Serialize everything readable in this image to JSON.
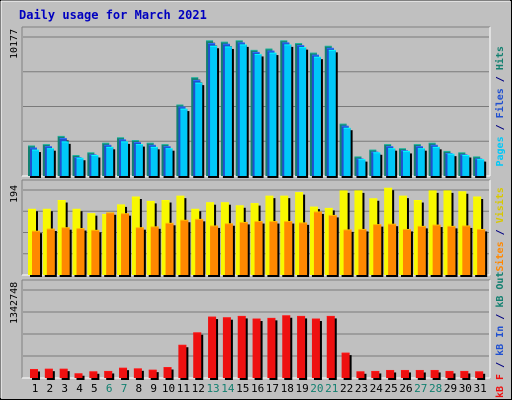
{
  "title": "Daily usage for March 2021",
  "colors": {
    "pages": "#138070",
    "files": "#2050d0",
    "hits": "#00c8f8",
    "visits": "#f8f800",
    "sites": "#ff8800",
    "kbf": "#ee1010",
    "kbin": "#0040d0",
    "kbout": "#138070",
    "title": "#0000c0",
    "weekend": "#138070",
    "panel": "#c0c0c0"
  },
  "right_labels": {
    "hits_panel": [
      {
        "text": "Pages",
        "color": "#00c8f8"
      },
      {
        "text": " / ",
        "color": "#000080"
      },
      {
        "text": "Files",
        "color": "#2050d0"
      },
      {
        "text": " / ",
        "color": "#000080"
      },
      {
        "text": "Hits",
        "color": "#138070"
      }
    ],
    "visits_panel": [
      {
        "text": "Sites",
        "color": "#ff8800"
      },
      {
        "text": " / ",
        "color": "#000080"
      },
      {
        "text": "Visits",
        "color": "#d8c800"
      }
    ],
    "kb_panel": [
      {
        "text": "kB F",
        "color": "#ee1010"
      },
      {
        "text": " / ",
        "color": "#000080"
      },
      {
        "text": "kB In",
        "color": "#2050d0"
      },
      {
        "text": " / ",
        "color": "#000080"
      },
      {
        "text": "kB Out",
        "color": "#138070"
      }
    ]
  },
  "chart_data": [
    {
      "type": "bar",
      "name": "hits-files-pages",
      "ytick": "10177",
      "ylim": [
        0,
        10177
      ],
      "categories": [
        "1",
        "2",
        "3",
        "4",
        "5",
        "6",
        "7",
        "8",
        "9",
        "10",
        "11",
        "12",
        "13",
        "14",
        "15",
        "16",
        "17",
        "18",
        "19",
        "20",
        "21",
        "22",
        "23",
        "24",
        "25",
        "26",
        "27",
        "28",
        "29",
        "30",
        "31"
      ],
      "weekend_days": [
        "6",
        "7",
        "13",
        "14",
        "20",
        "21",
        "27",
        "28"
      ],
      "series": [
        {
          "key": "hits",
          "values": [
            2200,
            2300,
            2900,
            1500,
            1700,
            2400,
            2800,
            2600,
            2400,
            2300,
            5200,
            7200,
            9900,
            9800,
            9900,
            9200,
            9300,
            9900,
            9700,
            9000,
            9500,
            3800,
            1400,
            1900,
            2300,
            2000,
            2300,
            2400,
            1800,
            1700,
            1400
          ]
        },
        {
          "key": "files",
          "values": [
            2050,
            2150,
            2750,
            1350,
            1550,
            2250,
            2650,
            2450,
            2250,
            2150,
            5050,
            7000,
            9700,
            9650,
            9750,
            9050,
            9150,
            9750,
            9550,
            8850,
            9350,
            3650,
            1250,
            1750,
            2150,
            1850,
            2150,
            2250,
            1650,
            1550,
            1250
          ]
        },
        {
          "key": "pages",
          "values": [
            1900,
            2000,
            2500,
            1300,
            1500,
            2100,
            2500,
            2300,
            2100,
            2000,
            4900,
            6800,
            9500,
            9450,
            9600,
            8900,
            9000,
            9600,
            9400,
            8700,
            9200,
            3500,
            1200,
            1700,
            2000,
            1800,
            2000,
            2100,
            1600,
            1500,
            1200
          ]
        }
      ]
    },
    {
      "type": "bar",
      "name": "visits-sites",
      "ytick": "194",
      "ylim": [
        0,
        194
      ],
      "series": [
        {
          "key": "visits",
          "values": [
            150,
            150,
            170,
            150,
            140,
            138,
            160,
            178,
            168,
            170,
            180,
            150,
            165,
            165,
            158,
            163,
            180,
            180,
            188,
            155,
            152,
            192,
            192,
            174,
            198,
            180,
            170,
            192,
            192,
            190,
            178
          ]
        },
        {
          "key": "sites",
          "values": [
            100,
            105,
            108,
            106,
            102,
            142,
            140,
            108,
            110,
            118,
            125,
            127,
            112,
            117,
            120,
            122,
            122,
            122,
            119,
            144,
            136,
            103,
            104,
            115,
            116,
            104,
            111,
            114,
            111,
            112,
            104
          ]
        }
      ]
    },
    {
      "type": "bar",
      "name": "kbytes",
      "ytick": "1342748",
      "ylim": [
        0,
        1342748
      ],
      "series": [
        {
          "key": "kbf",
          "values": [
            130000,
            135000,
            135000,
            65000,
            95000,
            100000,
            150000,
            140000,
            120000,
            160000,
            500000,
            690000,
            930000,
            920000,
            940000,
            900000,
            910000,
            950000,
            940000,
            900000,
            940000,
            380000,
            95000,
            100000,
            115000,
            115000,
            115000,
            115000,
            100000,
            100000,
            95000
          ]
        }
      ]
    }
  ]
}
